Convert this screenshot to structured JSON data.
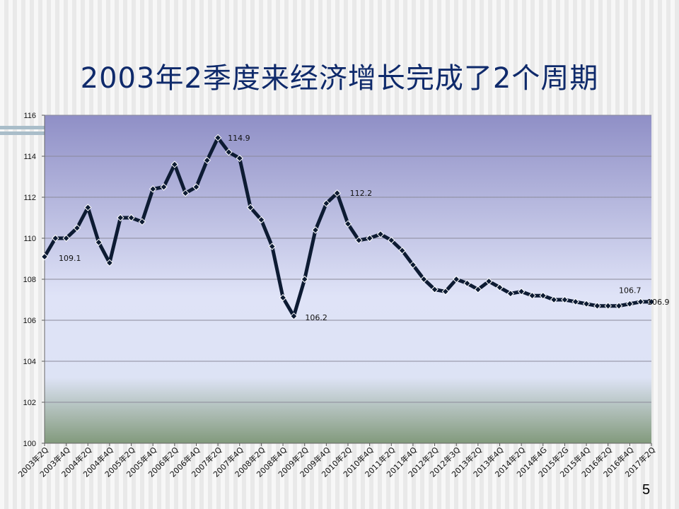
{
  "slide": {
    "title": "2003年2季度来经济增长完成了2个周期",
    "page_number": "5"
  },
  "colors": {
    "title": "#0f2a6b",
    "line": "#0d1b33",
    "plot_top": "#8f8fc6",
    "plot_mid": "#dfe3f7",
    "plot_bottom": "#829a7c"
  },
  "chart_data": {
    "type": "line",
    "title": "",
    "xlabel": "",
    "ylabel": "",
    "ylim": [
      100,
      116
    ],
    "yticks": [
      100,
      102,
      104,
      106,
      108,
      110,
      112,
      114,
      116
    ],
    "grid": true,
    "x_tick_labels": [
      "2003年2Q",
      "2003年4Q",
      "2004年2Q",
      "2004年4Q",
      "2005年2Q",
      "2005年4Q",
      "2006年2Q",
      "2006年4Q",
      "2007年2Q",
      "2007年4Q",
      "2008年2Q",
      "2008年4Q",
      "2009年2Q",
      "2009年4Q",
      "2010年2Q",
      "2010年4Q",
      "2011年2Q",
      "2011年4Q",
      "2012年2Q",
      "2012年3Q",
      "2013年2Q",
      "2013年4Q",
      "2014年2Q",
      "2014年4G",
      "2015年2G",
      "2015年4Q",
      "2016年2Q",
      "2016年4Q",
      "2017年2Q"
    ],
    "series": [
      {
        "values": [
          109.1,
          110.0,
          110.0,
          110.5,
          111.5,
          109.8,
          108.8,
          111.0,
          111.0,
          110.8,
          112.4,
          112.5,
          113.6,
          112.2,
          112.5,
          113.8,
          114.9,
          114.2,
          113.9,
          111.5,
          110.9,
          109.6,
          107.1,
          106.2,
          108.0,
          110.4,
          111.7,
          112.2,
          110.7,
          109.9,
          110.0,
          110.2,
          109.9,
          109.4,
          108.7,
          108.0,
          107.5,
          107.4,
          108.0,
          107.8,
          107.5,
          107.9,
          107.6,
          107.3,
          107.4,
          107.2,
          107.2,
          107.0,
          107.0,
          106.9,
          106.8,
          106.7,
          106.7,
          106.7,
          106.8,
          106.9,
          106.9
        ]
      }
    ],
    "annotations": [
      {
        "index": 0,
        "text": "109.1"
      },
      {
        "index": 16,
        "text": "114.9"
      },
      {
        "index": 23,
        "text": "106.2"
      },
      {
        "index": 27,
        "text": "112.2"
      },
      {
        "index": 53,
        "text": "106.7"
      },
      {
        "index": 56,
        "text": "106.9"
      }
    ]
  }
}
